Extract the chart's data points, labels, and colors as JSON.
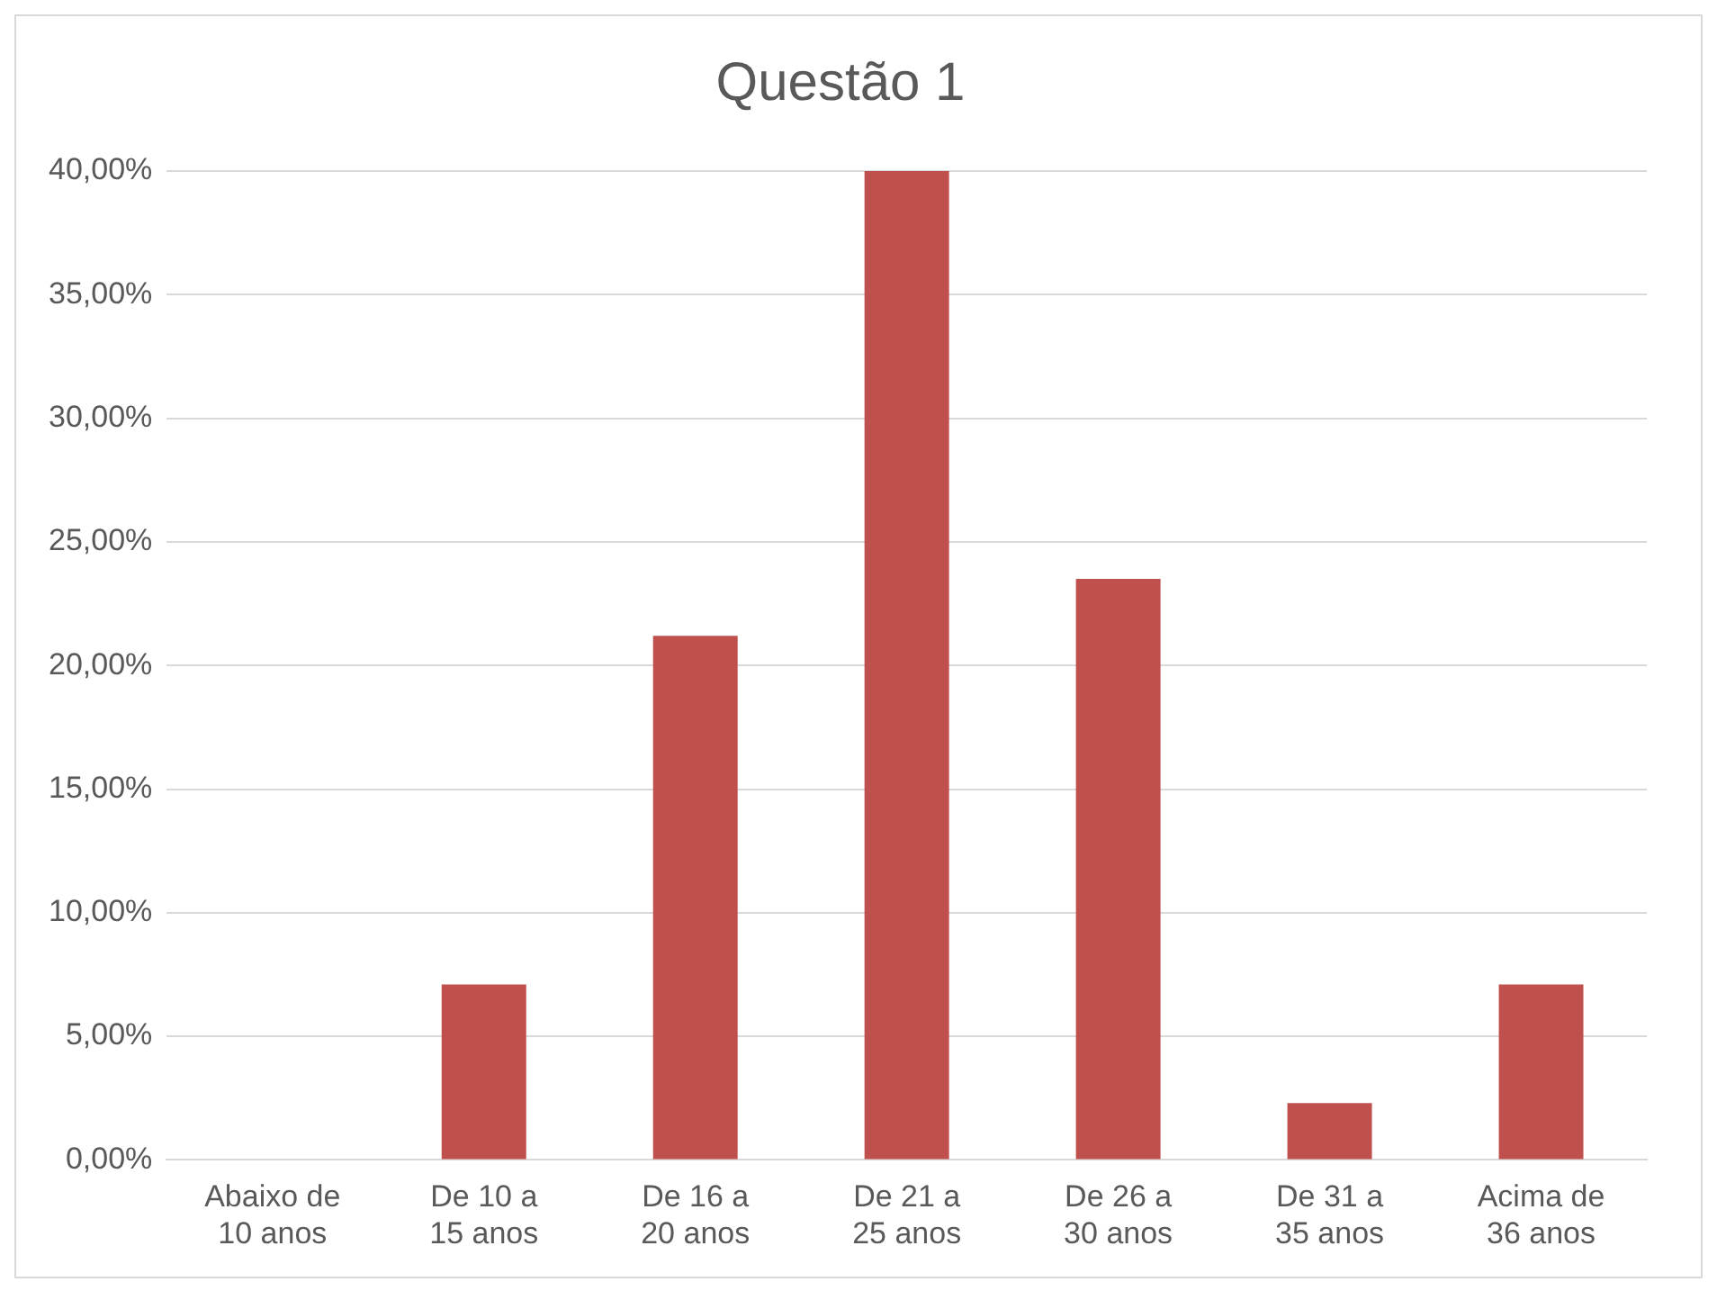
{
  "chart_data": {
    "type": "bar",
    "title": "Questão 1",
    "categories": [
      "Abaixo de 10 anos",
      "De 10 a 15 anos",
      "De 16 a 20 anos",
      "De 21 a 25 anos",
      "De 26 a 30 anos",
      "De 31 a 35 anos",
      "Acima de 36 anos"
    ],
    "values": [
      0,
      7.1,
      21.2,
      40,
      23.5,
      2.3,
      7.1
    ],
    "color": "#c0504d",
    "ylim": [
      0,
      40
    ],
    "yticks": [
      {
        "value": 0,
        "label": "0,00%"
      },
      {
        "value": 5,
        "label": "5,00%"
      },
      {
        "value": 10,
        "label": "10,00%"
      },
      {
        "value": 15,
        "label": "15,00%"
      },
      {
        "value": 20,
        "label": "20,00%"
      },
      {
        "value": 25,
        "label": "25,00%"
      },
      {
        "value": 30,
        "label": "30,00%"
      },
      {
        "value": 35,
        "label": "35,00%"
      },
      {
        "value": 40,
        "label": "40,00%"
      }
    ],
    "grid": "y"
  }
}
